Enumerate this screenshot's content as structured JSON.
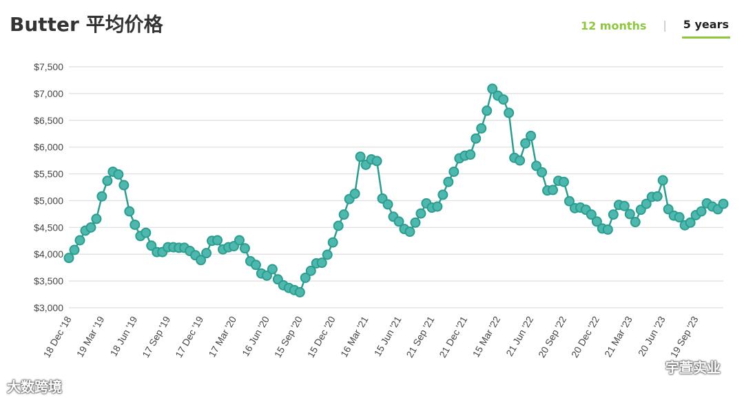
{
  "header": {
    "title": "Butter 平均价格",
    "tabs": [
      {
        "label": "12 months",
        "active": false
      },
      {
        "label": "5 years",
        "active": true
      }
    ]
  },
  "watermarks": {
    "left": "大数跨境",
    "right": "宇萱实业"
  },
  "colors": {
    "line": "#2a9d8f",
    "point_fill": "#4fb8ae",
    "grid": "#dddddd",
    "axis_text": "#444444",
    "accent": "#8dc63f"
  },
  "chart_data": {
    "type": "line",
    "ylim": [
      3000,
      7500
    ],
    "yticks": [
      "$3,000",
      "$3,500",
      "$4,000",
      "$4,500",
      "$5,000",
      "$5,500",
      "$6,000",
      "$6,500",
      "$7,000",
      "$7,500"
    ],
    "ytick_values": [
      3000,
      3500,
      4000,
      4500,
      5000,
      5500,
      6000,
      6500,
      7000,
      7500
    ],
    "xtick_labels": [
      "18 Dec '18",
      "19 Mar '19",
      "18 Jun '19",
      "17 Sep '19",
      "17 Dec '19",
      "17 Mar '20",
      "16 Jun '20",
      "15 Sep '20",
      "15 Dec '20",
      "16 Mar '21",
      "15 Jun '21",
      "21 Sep '21",
      "21 Dec '21",
      "15 Mar '22",
      "21 Jun '22",
      "20 Sep '22",
      "20 Dec '22",
      "21 Mar '23",
      "20 Jun '23",
      "19 Sep '23"
    ],
    "xtick_index": [
      0,
      6,
      12,
      18,
      24,
      30,
      36,
      42,
      48,
      54,
      60,
      66,
      72,
      78,
      84,
      90,
      96,
      102,
      108,
      114
    ],
    "values": [
      3930,
      4080,
      4260,
      4440,
      4500,
      4660,
      5080,
      5370,
      5540,
      5490,
      5290,
      4800,
      4550,
      4340,
      4400,
      4160,
      4040,
      4040,
      4130,
      4130,
      4120,
      4120,
      4060,
      3980,
      3890,
      4020,
      4250,
      4260,
      4090,
      4130,
      4150,
      4260,
      4110,
      3870,
      3800,
      3640,
      3600,
      3720,
      3530,
      3420,
      3370,
      3330,
      3290,
      3560,
      3690,
      3830,
      3840,
      3990,
      4220,
      4530,
      4740,
      5030,
      5130,
      5820,
      5670,
      5770,
      5740,
      5040,
      4930,
      4700,
      4610,
      4470,
      4420,
      4590,
      4760,
      4950,
      4870,
      4890,
      5110,
      5350,
      5540,
      5790,
      5840,
      5860,
      6160,
      6350,
      6680,
      7090,
      6960,
      6890,
      6640,
      5800,
      5750,
      6070,
      6210,
      5650,
      5530,
      5190,
      5200,
      5370,
      5350,
      4990,
      4860,
      4870,
      4830,
      4740,
      4610,
      4480,
      4460,
      4740,
      4920,
      4900,
      4750,
      4600,
      4830,
      4940,
      5070,
      5080,
      5380,
      4840,
      4720,
      4690,
      4540,
      4590,
      4730,
      4800,
      4950,
      4890,
      4840,
      4940
    ]
  }
}
